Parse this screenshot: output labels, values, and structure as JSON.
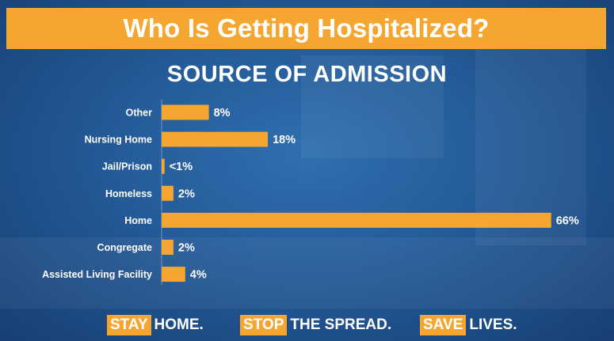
{
  "header": {
    "title": "Who Is Getting Hospitalized?"
  },
  "colors": {
    "accent": "#f5a630",
    "background": "#245a98",
    "text": "#ffffff"
  },
  "chart_data": {
    "type": "bar",
    "orientation": "horizontal",
    "title": "SOURCE OF ADMISSION",
    "categories": [
      "Other",
      "Nursing Home",
      "Jail/Prison",
      "Homeless",
      "Home",
      "Congregate",
      "Assisted Living Facility"
    ],
    "values": [
      8,
      18,
      0.5,
      2,
      66,
      2,
      4
    ],
    "value_labels": [
      "8%",
      "18%",
      "<1%",
      "2%",
      "66%",
      "2%",
      "4%"
    ],
    "xlim": [
      0,
      70
    ],
    "xlabel": "",
    "ylabel": "",
    "grid": false
  },
  "footer": {
    "items": [
      {
        "highlight": "STAY",
        "rest": "HOME."
      },
      {
        "highlight": "STOP",
        "rest": "THE SPREAD."
      },
      {
        "highlight": "SAVE",
        "rest": "LIVES."
      }
    ]
  }
}
